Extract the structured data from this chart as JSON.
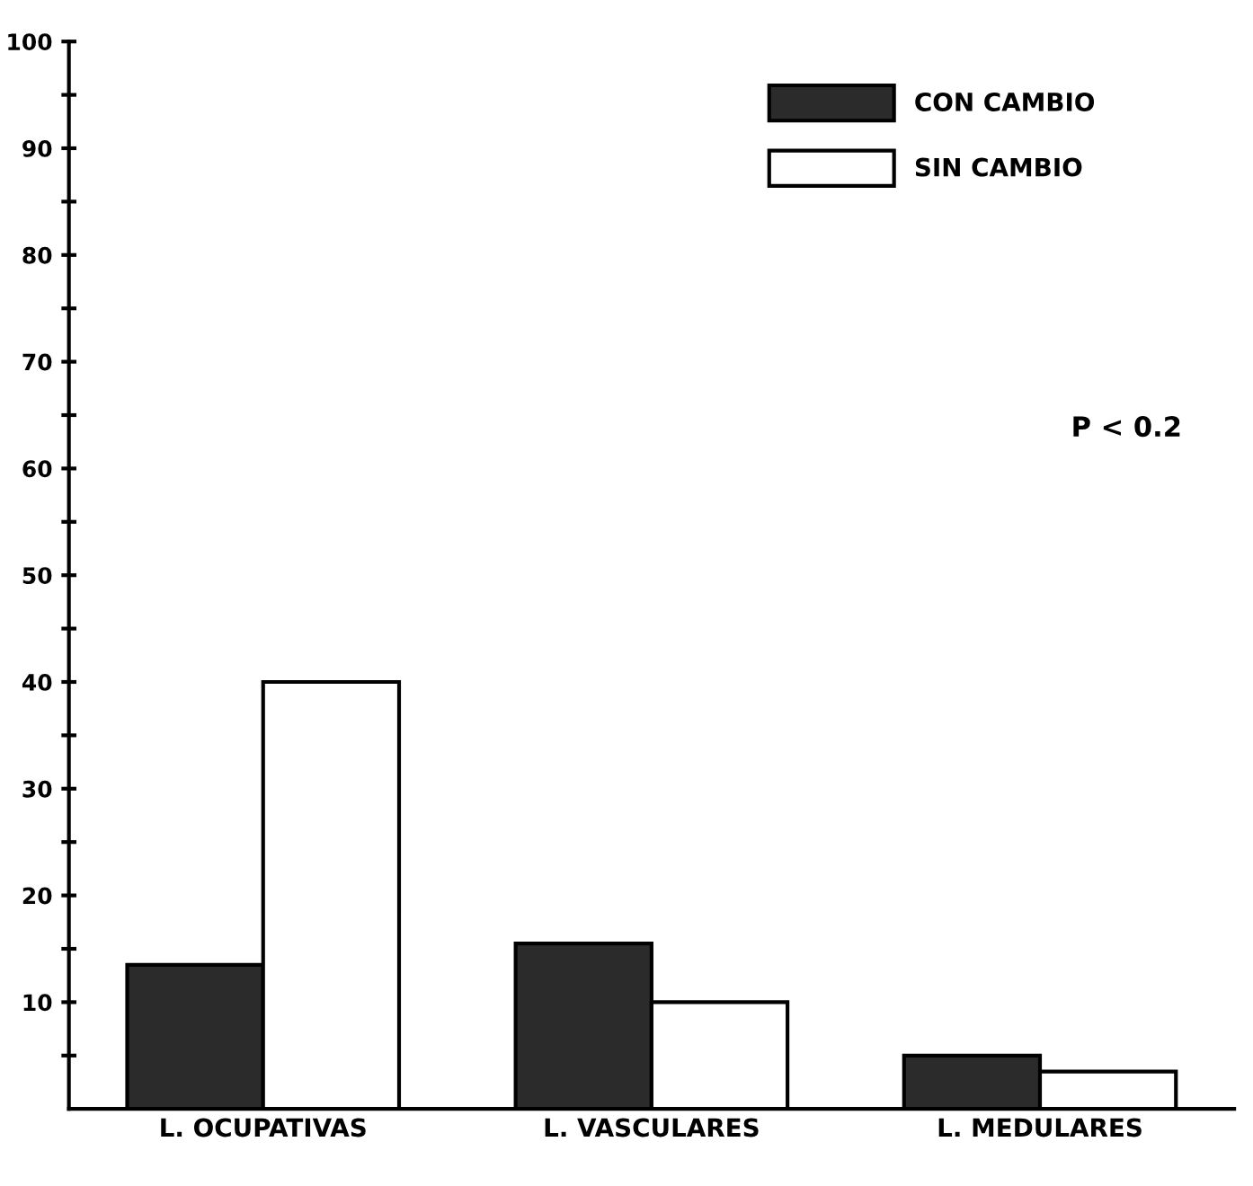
{
  "chart_data": {
    "type": "bar",
    "categories": [
      "L. OCUPATIVAS",
      "L. VASCULARES",
      "L. MEDULARES"
    ],
    "series": [
      {
        "name": "CON CAMBIO",
        "color": "#2b2b2b",
        "values": [
          13.5,
          15.5,
          5
        ]
      },
      {
        "name": "SIN CAMBIO",
        "color": "#ffffff",
        "values": [
          40,
          10,
          3.5
        ]
      }
    ],
    "ylim": [
      0,
      100
    ],
    "yticks": [
      {
        "value": 5,
        "label": null
      },
      10,
      {
        "value": 15,
        "label": null
      },
      20,
      {
        "value": 25,
        "label": null
      },
      30,
      {
        "value": 35,
        "label": null
      },
      40,
      {
        "value": 45,
        "label": null
      },
      50,
      {
        "value": 55,
        "label": null
      },
      60,
      {
        "value": 65,
        "label": null
      },
      70,
      {
        "value": 75,
        "label": null
      },
      80,
      {
        "value": 85,
        "label": null
      },
      90,
      {
        "value": 95,
        "label": null
      },
      100
    ],
    "annotations": [
      "P < 0.2"
    ],
    "legend": "top right",
    "grid": false
  }
}
